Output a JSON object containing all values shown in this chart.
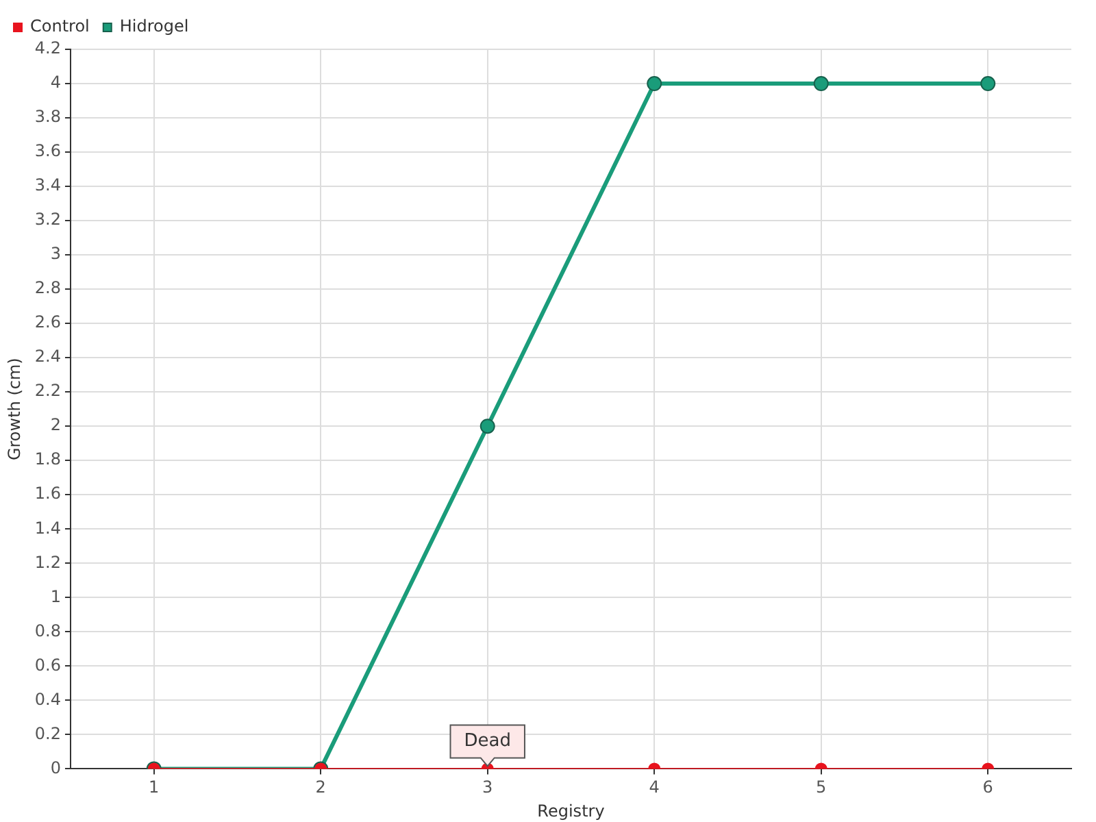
{
  "chart_data": {
    "type": "line",
    "xlabel": "Registry",
    "ylabel": "Growth (cm)",
    "categories": [
      "1",
      "2",
      "3",
      "4",
      "5",
      "6"
    ],
    "series": [
      {
        "name": "Hidrogel",
        "color": "#1a9c7a",
        "values": [
          0,
          0,
          2,
          4,
          4,
          4
        ]
      },
      {
        "name": "Control",
        "color": "#e8141e",
        "values": [
          0,
          0,
          0,
          0,
          0,
          0
        ]
      }
    ],
    "ylim": [
      0,
      4.2
    ],
    "yticks": [
      0,
      0.2,
      0.4,
      0.6,
      0.8,
      1,
      1.2,
      1.4,
      1.6,
      1.8,
      2,
      2.2,
      2.4,
      2.6,
      2.8,
      3,
      3.2,
      3.4,
      3.6,
      3.8,
      4,
      4.2
    ],
    "annotations": [
      {
        "text": "Dead",
        "x": "3",
        "y": 0
      }
    ],
    "grid": true,
    "legend": "top left",
    "marker": "circle",
    "line_style": "solid"
  }
}
